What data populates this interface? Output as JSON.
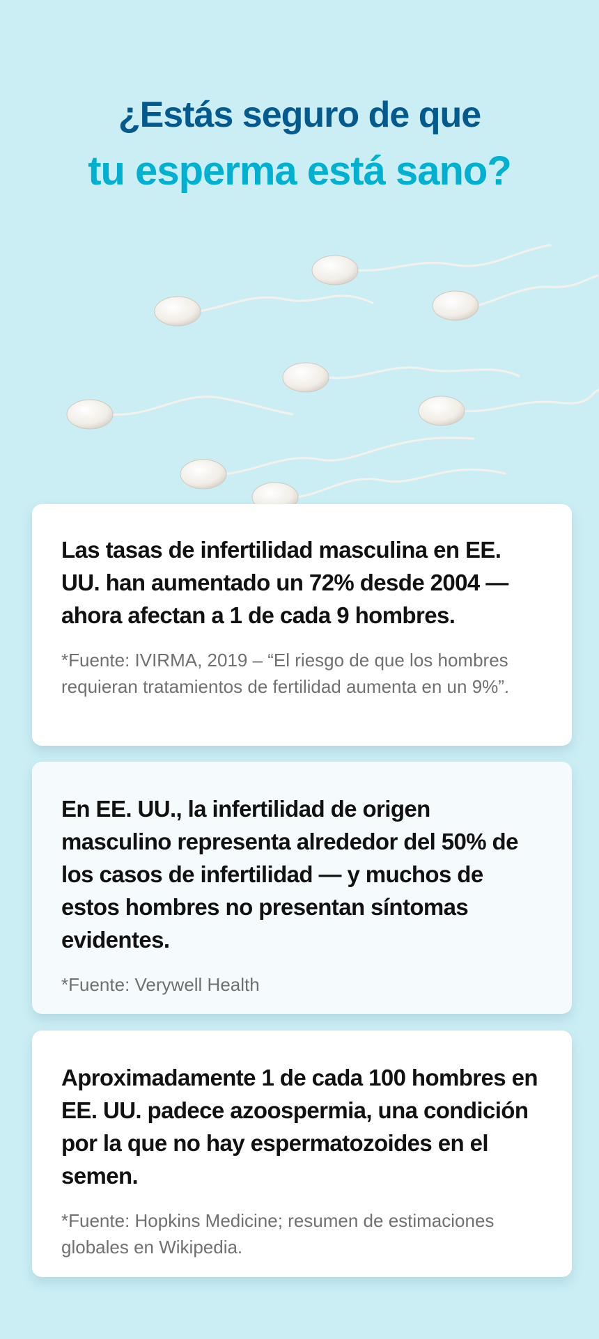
{
  "header": {
    "line1": "¿Estás seguro de que",
    "line2": "tu esperma está sano?"
  },
  "colors": {
    "background": "#cbeef5",
    "title_dark": "#035a8f",
    "title_light": "#00b0d0"
  },
  "cards": [
    {
      "text": "Las tasas de infertilidad masculina en EE. UU. han aumentado un 72% desde 2004 — ahora afectan a 1 de cada 9 hombres.",
      "source": "*Fuente: IVIRMA, 2019 – “El riesgo de que los hombres requieran tratamientos de fertilidad aumenta en un 9%”."
    },
    {
      "text": "En EE. UU., la infertilidad de origen masculino representa alrededor del 50% de los casos de infertilidad — y muchos de estos hombres no presentan síntomas evidentes.",
      "source": "*Fuente: Verywell Health"
    },
    {
      "text": "Aproximadamente 1 de cada 100 hombres en EE. UU. padece azoospermia, una condición por la que no hay espermatozoides en el semen.",
      "source": "*Fuente: Hopkins Medicine; resumen de estimaciones globales en Wikipedia."
    }
  ]
}
